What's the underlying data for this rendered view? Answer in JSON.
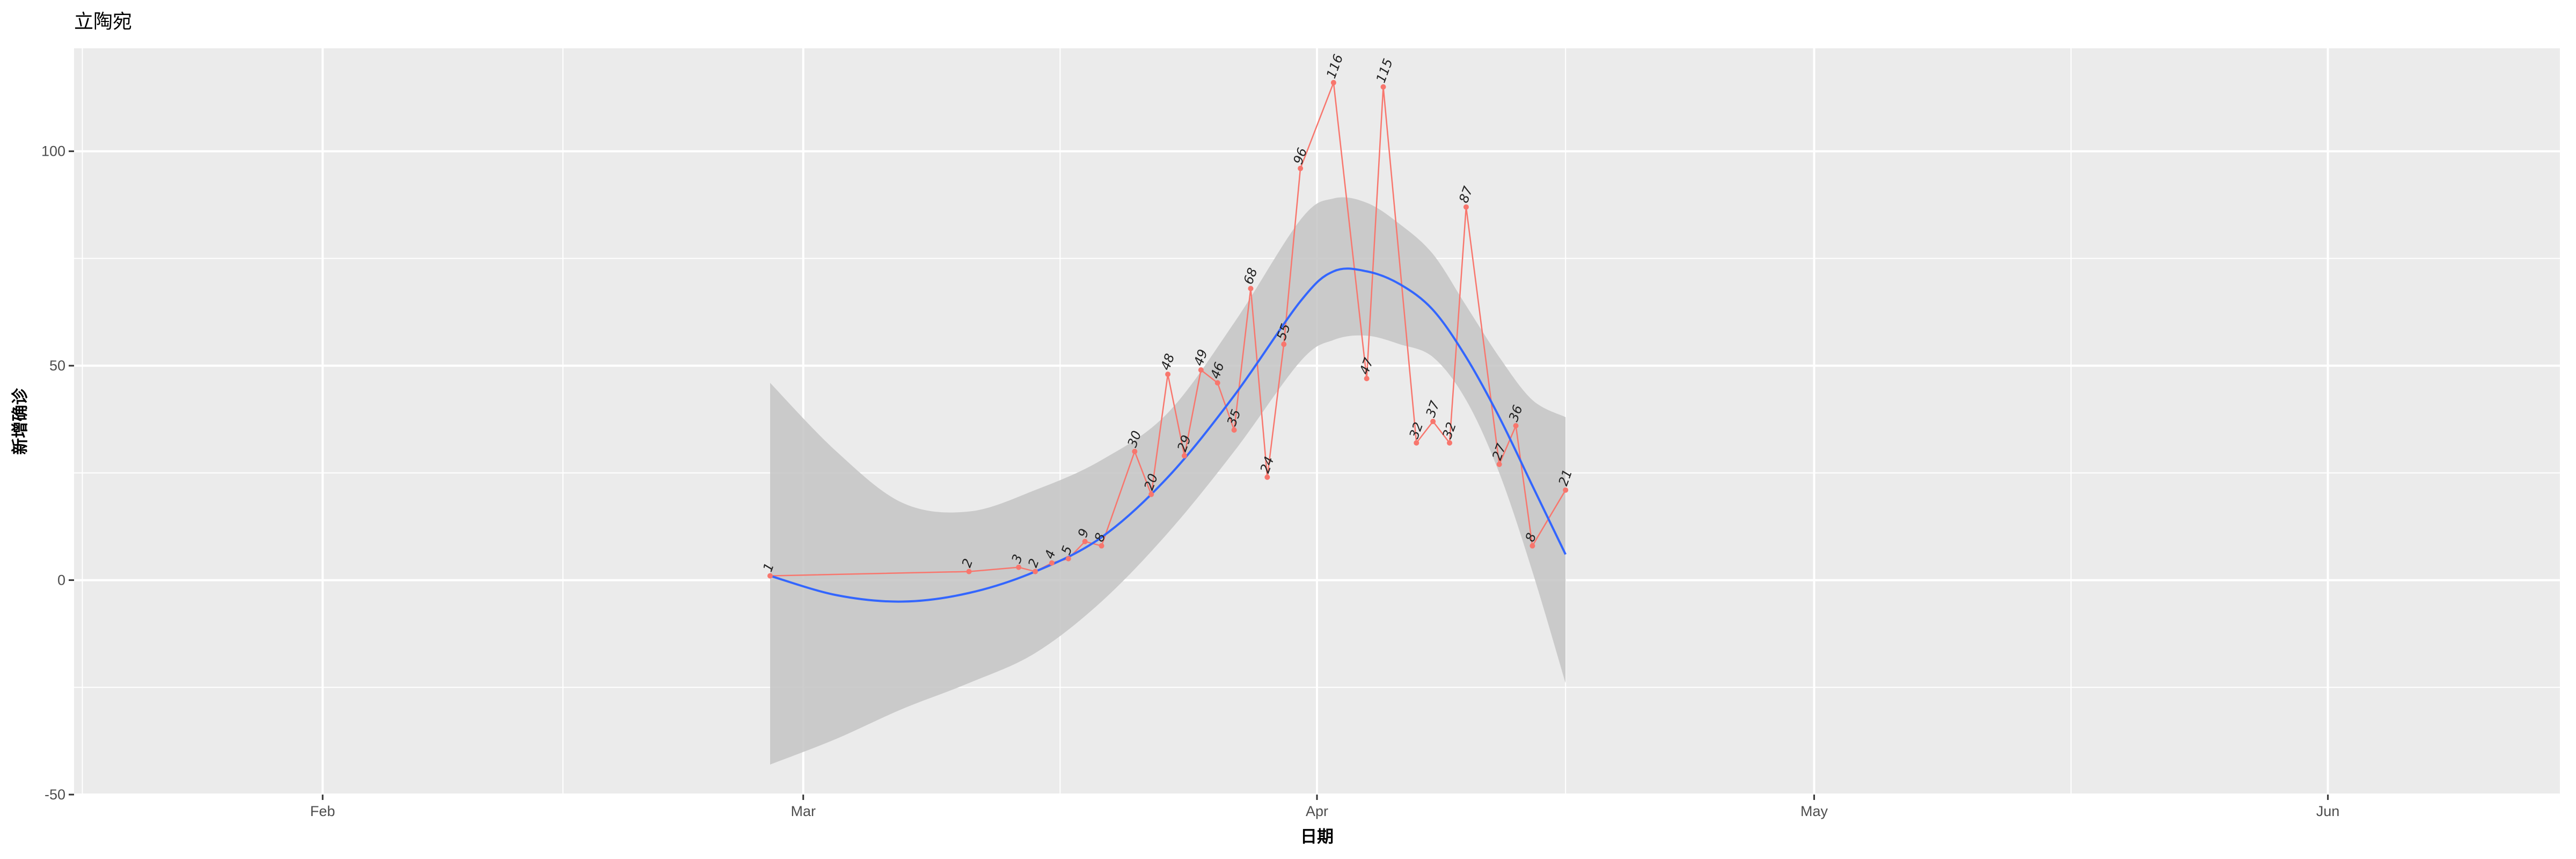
{
  "chart_data": {
    "type": "line",
    "title": "立陶宛",
    "xlabel": "日期",
    "ylabel": "新增确诊",
    "x_ticks": [
      {
        "date": "2020-02-01",
        "label": "Feb"
      },
      {
        "date": "2020-03-01",
        "label": "Mar"
      },
      {
        "date": "2020-04-01",
        "label": "Apr"
      },
      {
        "date": "2020-05-01",
        "label": "May"
      },
      {
        "date": "2020-06-01",
        "label": "Jun"
      }
    ],
    "y_ticks": [
      -50,
      0,
      50,
      100
    ],
    "xlim": [
      "2020-01-17",
      "2020-06-15"
    ],
    "ylim": [
      -50,
      124
    ],
    "grid": true,
    "colors": {
      "panel": "#ebebeb",
      "grid": "#ffffff",
      "series_line": "#f8766d",
      "smooth_line": "#3366ff",
      "ribbon": "#c4c4c4"
    },
    "series": [
      {
        "values": [
          {
            "date": "2020-02-28",
            "y": 1
          },
          {
            "date": "2020-03-11",
            "y": 2
          },
          {
            "date": "2020-03-14",
            "y": 3
          },
          {
            "date": "2020-03-15",
            "y": 2
          },
          {
            "date": "2020-03-16",
            "y": 4
          },
          {
            "date": "2020-03-17",
            "y": 5
          },
          {
            "date": "2020-03-18",
            "y": 9
          },
          {
            "date": "2020-03-19",
            "y": 8
          },
          {
            "date": "2020-03-21",
            "y": 30
          },
          {
            "date": "2020-03-22",
            "y": 20
          },
          {
            "date": "2020-03-23",
            "y": 48
          },
          {
            "date": "2020-03-24",
            "y": 29
          },
          {
            "date": "2020-03-25",
            "y": 49
          },
          {
            "date": "2020-03-26",
            "y": 46
          },
          {
            "date": "2020-03-27",
            "y": 35
          },
          {
            "date": "2020-03-28",
            "y": 68
          },
          {
            "date": "2020-03-29",
            "y": 24
          },
          {
            "date": "2020-03-30",
            "y": 55
          },
          {
            "date": "2020-03-31",
            "y": 96
          },
          {
            "date": "2020-04-02",
            "y": 116
          },
          {
            "date": "2020-04-04",
            "y": 47
          },
          {
            "date": "2020-04-05",
            "y": 115
          },
          {
            "date": "2020-04-07",
            "y": 32
          },
          {
            "date": "2020-04-08",
            "y": 37
          },
          {
            "date": "2020-04-09",
            "y": 32
          },
          {
            "date": "2020-04-10",
            "y": 87
          },
          {
            "date": "2020-04-12",
            "y": 27
          },
          {
            "date": "2020-04-13",
            "y": 36
          },
          {
            "date": "2020-04-14",
            "y": 8
          },
          {
            "date": "2020-04-16",
            "y": 21
          }
        ]
      }
    ],
    "smooth": {
      "method": "loess",
      "fit": [
        {
          "date": "2020-02-28",
          "y": 1,
          "lo": -43,
          "hi": 46
        },
        {
          "date": "2020-03-03",
          "y": -3.5,
          "lo": -37,
          "hi": 30
        },
        {
          "date": "2020-03-07",
          "y": -5,
          "lo": -30,
          "hi": 18
        },
        {
          "date": "2020-03-11",
          "y": -3,
          "lo": -24,
          "hi": 16
        },
        {
          "date": "2020-03-15",
          "y": 2,
          "lo": -17,
          "hi": 21
        },
        {
          "date": "2020-03-19",
          "y": 10,
          "lo": -5,
          "hi": 28
        },
        {
          "date": "2020-03-23",
          "y": 24,
          "lo": 11,
          "hi": 39
        },
        {
          "date": "2020-03-27",
          "y": 43,
          "lo": 30,
          "hi": 60
        },
        {
          "date": "2020-03-31",
          "y": 65,
          "lo": 51,
          "hi": 84
        },
        {
          "date": "2020-04-02",
          "y": 72,
          "lo": 56,
          "hi": 89
        },
        {
          "date": "2020-04-04",
          "y": 72,
          "lo": 57,
          "hi": 88
        },
        {
          "date": "2020-04-06",
          "y": 69,
          "lo": 55,
          "hi": 83
        },
        {
          "date": "2020-04-08",
          "y": 63,
          "lo": 52,
          "hi": 76
        },
        {
          "date": "2020-04-10",
          "y": 52,
          "lo": 42,
          "hi": 64
        },
        {
          "date": "2020-04-12",
          "y": 38,
          "lo": 25,
          "hi": 52
        },
        {
          "date": "2020-04-14",
          "y": 22,
          "lo": 2,
          "hi": 42
        },
        {
          "date": "2020-04-16",
          "y": 6,
          "lo": -24,
          "hi": 38
        }
      ]
    }
  }
}
